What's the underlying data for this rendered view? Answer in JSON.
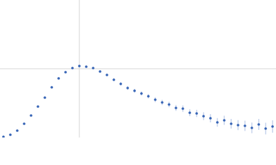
{
  "chart_data": {
    "type": "scatter",
    "color": "#3563b5",
    "error_color": "#a9bde3",
    "xlim": [
      0,
      400
    ],
    "ylim": [
      0,
      200
    ],
    "xticks": [
      115
    ],
    "yticks": [
      100
    ],
    "grid": true,
    "x": [
      5,
      15,
      25,
      35,
      45,
      55,
      65,
      75,
      85,
      95,
      105,
      115,
      125,
      135,
      145,
      155,
      165,
      175,
      185,
      195,
      205,
      215,
      225,
      235,
      245,
      255,
      265,
      275,
      285,
      295,
      305,
      315,
      325,
      335,
      345,
      355,
      365,
      375,
      385,
      395
    ],
    "values": [
      1,
      4,
      10,
      20,
      32,
      45,
      58,
      73,
      86,
      95,
      101,
      104,
      103,
      101,
      96,
      91,
      84,
      78,
      72,
      68,
      64,
      60,
      55,
      51,
      48,
      43,
      42,
      36,
      35,
      31,
      28,
      22,
      25,
      20,
      18,
      17,
      14,
      19,
      13,
      16
    ],
    "errors": [
      0.5,
      0.5,
      0.6,
      0.7,
      0.8,
      0.9,
      1,
      1,
      1.1,
      1.2,
      1.3,
      1.4,
      1.5,
      1.6,
      1.8,
      2,
      2.2,
      2.4,
      2.6,
      2.8,
      3,
      3.2,
      3.5,
      3.8,
      4,
      4.3,
      4.6,
      5,
      5.3,
      5.6,
      6,
      6.3,
      6.6,
      7,
      7.2,
      7.5,
      7.8,
      8,
      8.5,
      9
    ]
  }
}
